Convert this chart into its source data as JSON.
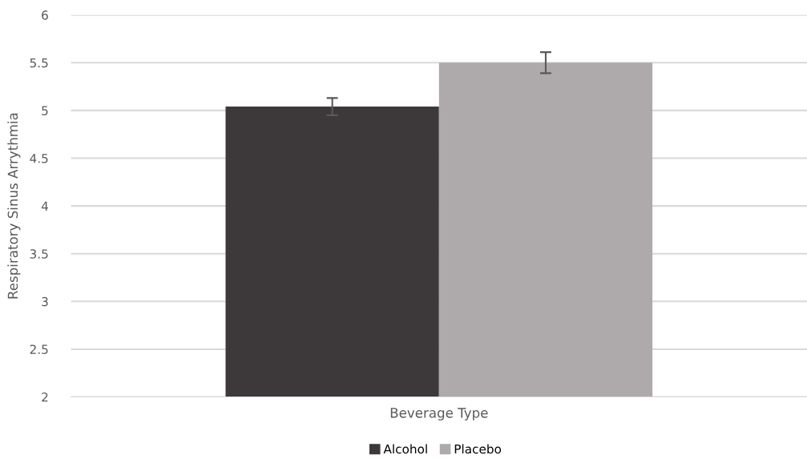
{
  "chart_data": {
    "type": "bar",
    "xlabel": "Beverage Type",
    "ylabel": "Respiratory Sinus Arrythmia",
    "categories": [
      null
    ],
    "series": [
      {
        "name": "Alcohol",
        "color": "#3d393a",
        "values": [
          5.04
        ],
        "errors": [
          0.09
        ]
      },
      {
        "name": "Placebo",
        "color": "#aeaaab",
        "values": [
          5.5
        ],
        "errors": [
          0.11
        ]
      }
    ],
    "ylim": [
      2,
      6
    ],
    "yticks": [
      2,
      2.5,
      3,
      3.5,
      4,
      4.5,
      5,
      5.5,
      6
    ],
    "grid": "y",
    "legend": "bottom"
  }
}
